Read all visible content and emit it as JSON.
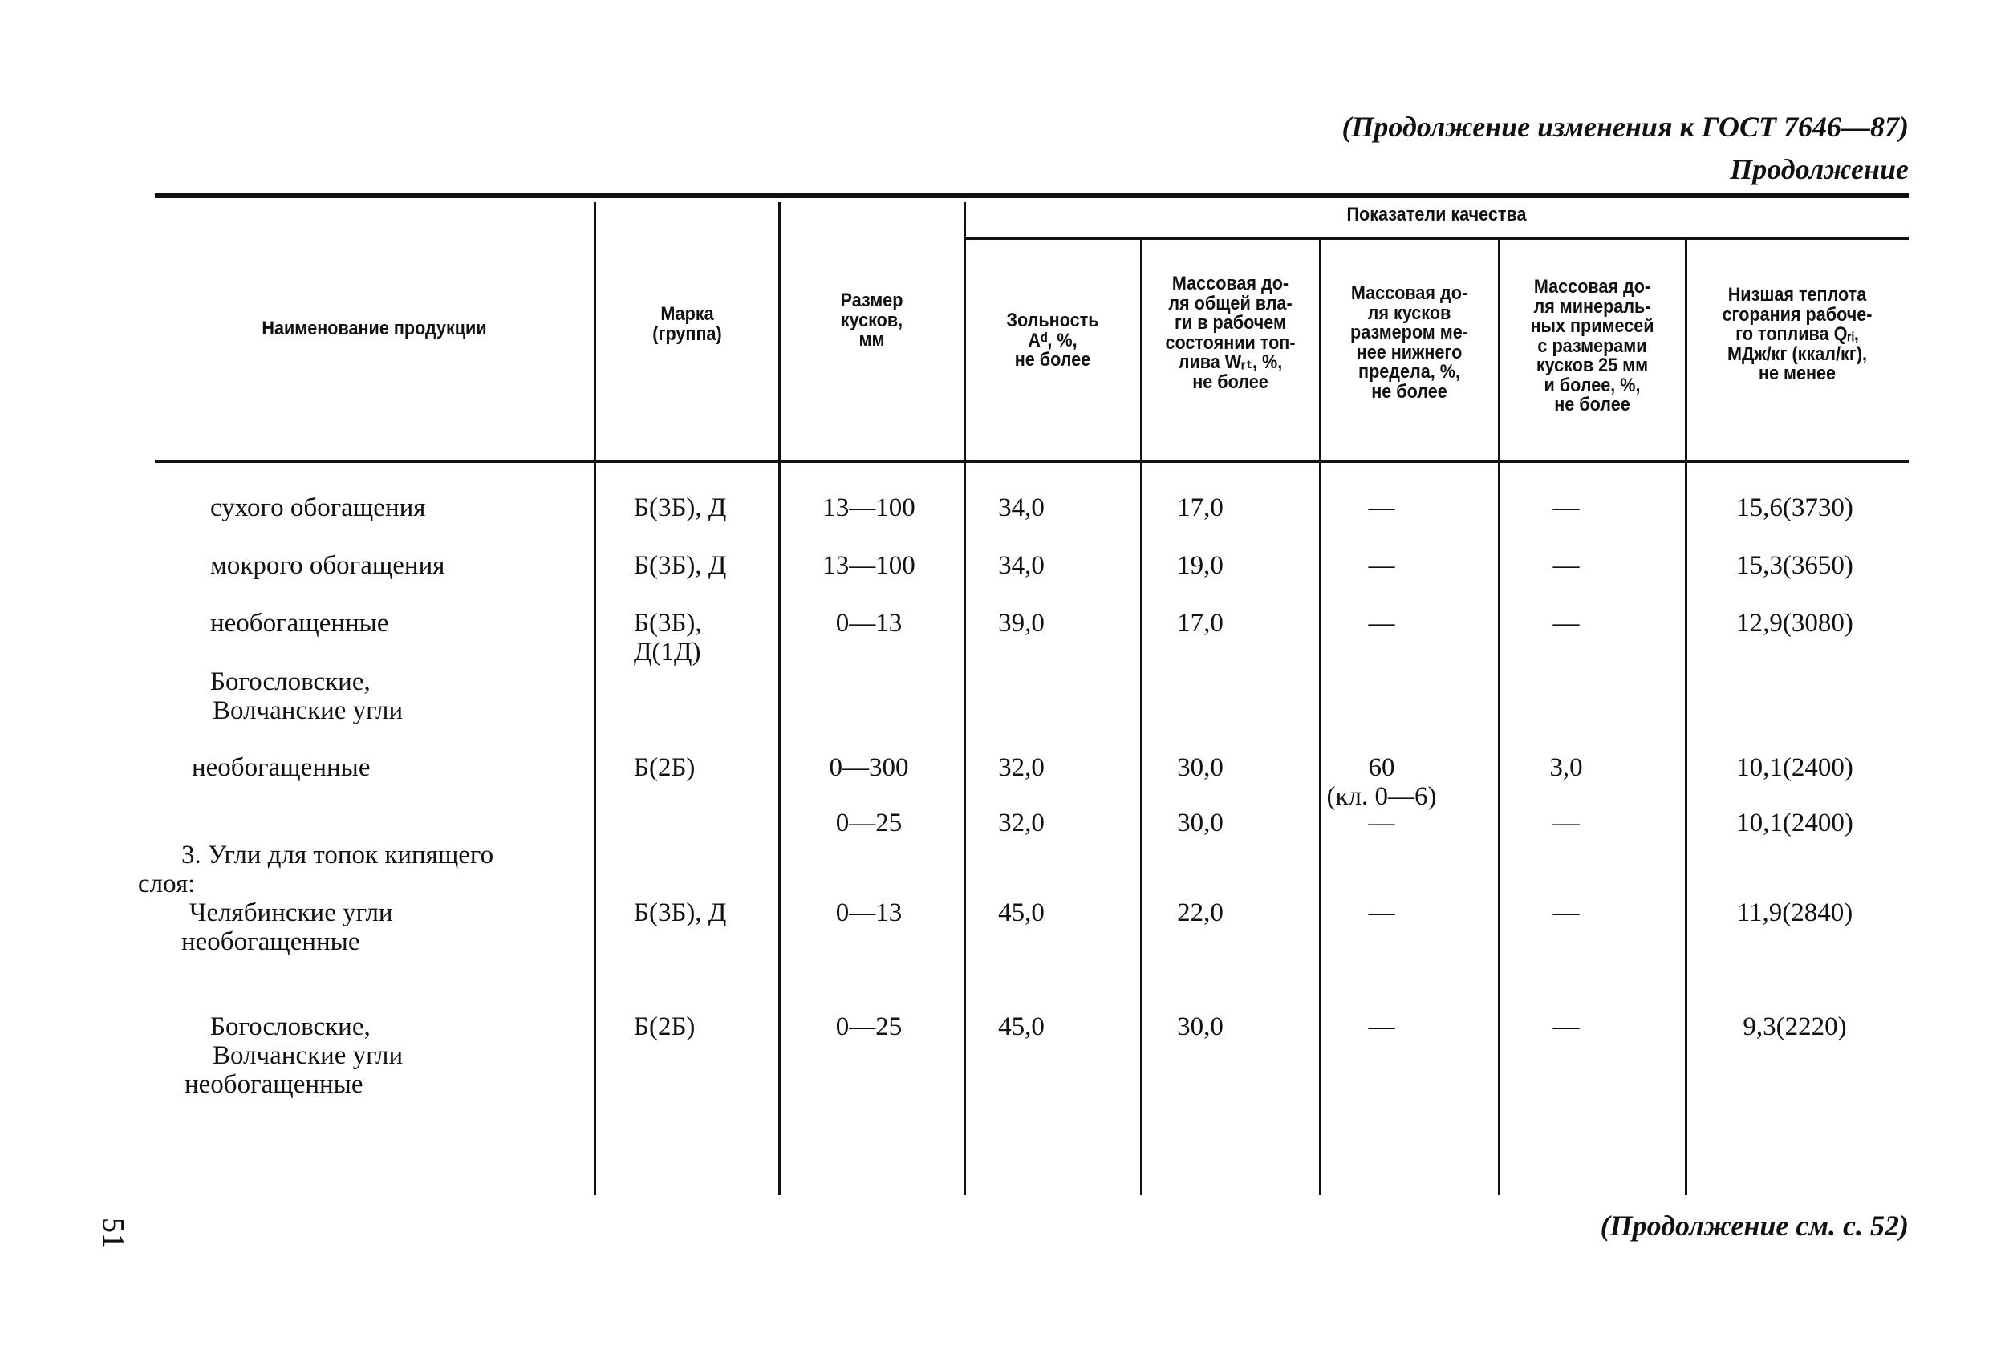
{
  "running_header": "(Продолжение изменения к ГОСТ 7646—87)",
  "continuation_label": "Продолжение",
  "table": {
    "headers": {
      "name": "Наименование продукции",
      "mark": [
        "Марка",
        "(группа)"
      ],
      "size": [
        "Размер",
        "кусков,",
        "мм"
      ],
      "quality_group": "Показатели качества",
      "ash": [
        "Зольность",
        "Aᵈ, %,",
        "не более"
      ],
      "moisture": [
        "Массовая до-",
        "ля общей вла-",
        "ги в рабочем",
        "состоянии топ-",
        "лива Wᵣₜ, %,",
        "не более"
      ],
      "fines": [
        "Массовая до-",
        "ля кусков",
        "размером ме-",
        "нее нижнего",
        "предела, %,",
        "не более"
      ],
      "mineral": [
        "Массовая до-",
        "ля минераль-",
        "ных примесей",
        "с размерами",
        "кусков 25 мм",
        "и более, %,",
        "не более"
      ],
      "heat": [
        "Низшая теплота",
        "сгорания рабоче-",
        "го топлива Qᵣᵢ,",
        "МДж/кг (ккал/кг),",
        "не менее"
      ]
    },
    "rows": [
      {
        "name": [
          "сухого обогащения"
        ],
        "mark": [
          "Б(3Б), Д"
        ],
        "size": "13—100",
        "ash": "34,0",
        "moisture": "17,0",
        "fines": [
          "—"
        ],
        "mineral": "—",
        "heat": "15,6(3730)"
      },
      {
        "name": [
          "мокрого обогащения"
        ],
        "mark": [
          "Б(3Б), Д"
        ],
        "size": "13—100",
        "ash": "34,0",
        "moisture": "19,0",
        "fines": [
          "—"
        ],
        "mineral": "—",
        "heat": "15,3(3650)"
      },
      {
        "name": [
          "необогащенные"
        ],
        "mark": [
          "Б(3Б),",
          "Д(1Д)"
        ],
        "size": "0—13",
        "ash": "39,0",
        "moisture": "17,0",
        "fines": [
          "—"
        ],
        "mineral": "—",
        "heat": "12,9(3080)"
      },
      {
        "name": [
          "Богословские,",
          "Волчанские угли"
        ]
      },
      {
        "name": [
          "необогащенные"
        ],
        "mark": [
          "Б(2Б)"
        ],
        "size": "0—300",
        "ash": "32,0",
        "moisture": "30,0",
        "fines": [
          "60",
          "(кл. 0—6)"
        ],
        "mineral": "3,0",
        "heat": "10,1(2400)"
      },
      {
        "name": [],
        "mark": [],
        "size": "0—25",
        "ash": "32,0",
        "moisture": "30,0",
        "fines": [
          "—"
        ],
        "mineral": "—",
        "heat": "10,1(2400)"
      },
      {
        "name": [
          "3. Угли для топок кипящего",
          "слоя:"
        ]
      },
      {
        "name": [
          "Челябинские угли",
          "необогащенные"
        ],
        "mark": [
          "Б(3Б), Д"
        ],
        "size": "0—13",
        "ash": "45,0",
        "moisture": "22,0",
        "fines": [
          "—"
        ],
        "mineral": "—",
        "heat": "11,9(2840)"
      },
      {
        "name": [
          "Богословские,",
          "Волчанские угли",
          "необогащенные"
        ],
        "mark": [
          "Б(2Б)"
        ],
        "size": "0—25",
        "ash": "45,0",
        "moisture": "30,0",
        "fines": [
          "—"
        ],
        "mineral": "—",
        "heat": "9,3(2220)"
      }
    ]
  },
  "footer": "(Продолжение см. с. 52)",
  "page_number": "51"
}
